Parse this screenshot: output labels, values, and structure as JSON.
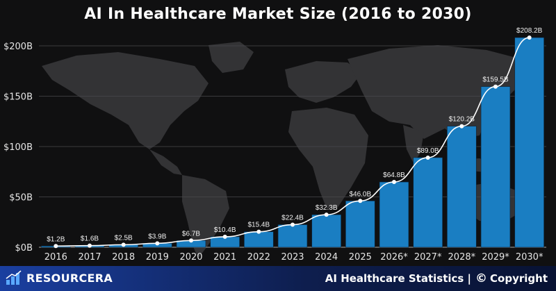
{
  "chart_data": {
    "type": "bar",
    "title": "AI In Healthcare Market Size (2016 to 2030)",
    "xlabel": "",
    "ylabel": "",
    "ylim": [
      0,
      210
    ],
    "yticks": [
      "$0B",
      "$50B",
      "$100B",
      "$150B",
      "$200B"
    ],
    "ytick_values": [
      0,
      50,
      100,
      150,
      200
    ],
    "categories": [
      "2016",
      "2017",
      "2018",
      "2019",
      "2020",
      "2021",
      "2022",
      "2023",
      "2024",
      "2025",
      "2026*",
      "2027*",
      "2028*",
      "2029*",
      "2030*"
    ],
    "values": [
      1.2,
      1.6,
      2.5,
      3.9,
      6.7,
      10.4,
      15.4,
      22.4,
      32.3,
      46.0,
      64.8,
      89.0,
      120.2,
      159.5,
      208.2
    ],
    "data_labels": [
      "$1.2B",
      "$1.6B",
      "$2.5B",
      "$3.9B",
      "$6.7B",
      "$10.4B",
      "$15.4B",
      "$22.4B",
      "$32.3B",
      "$46.0B",
      "$64.8B",
      "$89.0B",
      "$120.2B",
      "$159.5B",
      "$208.2B"
    ],
    "trend_line": true,
    "grid": true,
    "bar_color": "#1a7ec2",
    "line_color": "#ffffff"
  },
  "footer": {
    "brand": "RESOURCERA",
    "right_text": "AI Healthcare Statistics |",
    "copyright_symbol": "©",
    "copyright_text": "Copyright"
  },
  "colors": {
    "background": "#101011",
    "map": "#3a3a3c",
    "footer_start": "#1a3fa0",
    "footer_end": "#081233"
  }
}
